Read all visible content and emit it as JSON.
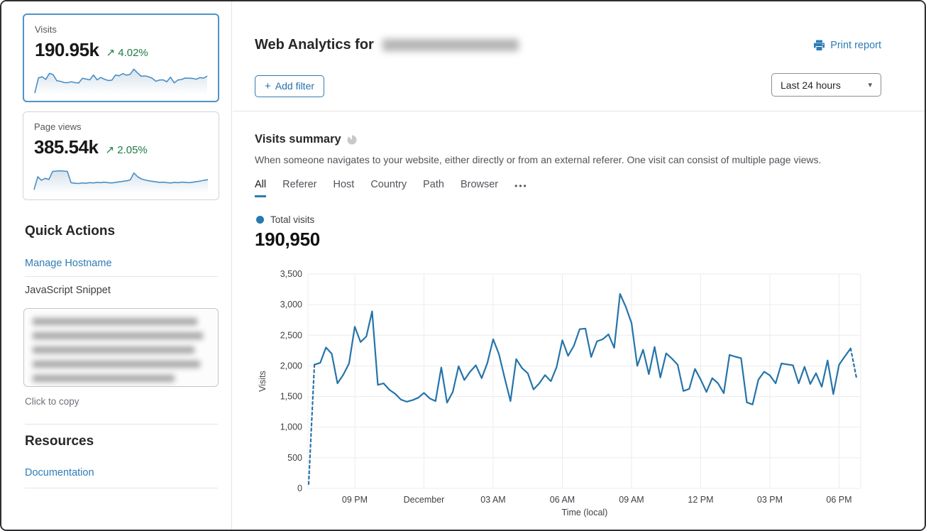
{
  "colors": {
    "accent_blue": "#2e7cb5",
    "chart_line": "#2574a9",
    "positive_green": "#1e7d45",
    "selected_card_border": "#4e93c9",
    "tab_underline": "#2c7cb0"
  },
  "sidebar": {
    "cards": [
      {
        "label": "Visits",
        "value": "190.95k",
        "delta_arrow": "↗",
        "delta": "4.02%",
        "selected": true,
        "spark_max": 3500,
        "spark": [
          70,
          2050,
          2200,
          1855,
          2640,
          2480,
          1690,
          1610,
          1450,
          1440,
          1560,
          1425,
          1400,
          1995,
          1905,
          1800,
          2435,
          1800,
          2110,
          1880,
          1715,
          1750,
          2420,
          2330,
          2610,
          2400,
          2515,
          3175,
          2700,
          2265,
          2310,
          2205,
          2020,
          1625,
          1775,
          1800,
          1555,
          2150,
          1405,
          1775,
          1845,
          2040,
          2010,
          1985,
          1880,
          2090,
          2020,
          2285
        ]
      },
      {
        "label": "Page views",
        "value": "385.54k",
        "delta_arrow": "↗",
        "delta": "2.05%",
        "selected": false,
        "spark_max": 100,
        "spark": [
          10,
          58,
          45,
          52,
          48,
          78,
          79,
          80,
          79,
          78,
          36,
          34,
          33,
          35,
          34,
          36,
          35,
          37,
          36,
          38,
          36,
          35,
          37,
          39,
          41,
          43,
          46,
          72,
          58,
          50,
          46,
          43,
          41,
          39,
          37,
          38,
          36,
          35,
          37,
          36,
          38,
          37,
          36,
          38,
          40,
          42,
          45,
          47
        ]
      }
    ],
    "quick_actions_title": "Quick Actions",
    "manage_hostname_link": "Manage Hostname",
    "js_snippet_label": "JavaScript Snippet",
    "click_to_copy": "Click to copy",
    "resources_title": "Resources",
    "documentation_link": "Documentation"
  },
  "header": {
    "title_prefix": "Web Analytics for",
    "print_report_label": "Print report"
  },
  "toolbar": {
    "add_filter_plus": "+",
    "add_filter_label": "Add filter",
    "time_range_value": "Last 24 hours",
    "caret_glyph": "▾"
  },
  "summary": {
    "title": "Visits summary",
    "description": "When someone navigates to your website, either directly or from an external referer. One visit can consist of multiple page views.",
    "tabs": [
      "All",
      "Referer",
      "Host",
      "Country",
      "Path",
      "Browser"
    ],
    "active_tab": "All",
    "overflow_tab": "•••"
  },
  "chart_data": {
    "type": "line",
    "legend_label": "Total visits",
    "total_visits_label": "190,950",
    "xlabel": "Time (local)",
    "ylabel": "Visits",
    "ylim": [
      0,
      3500
    ],
    "y_tick_step": 500,
    "y_tick_labels": [
      "0",
      "500",
      "1,000",
      "1,500",
      "2,000",
      "2,500",
      "3,000",
      "3,500"
    ],
    "x_tick_labels": [
      "09 PM",
      "December",
      "03 AM",
      "06 AM",
      "09 AM",
      "12 PM",
      "03 PM",
      "06 PM"
    ],
    "x_tick_indices": [
      8,
      20,
      32,
      44,
      56,
      68,
      80,
      92
    ],
    "grid": true,
    "legend_position": "top-left",
    "line_color": "#2574a9",
    "dashed_head_segments": 1,
    "dashed_tail_segments": 1,
    "values": [
      70,
      2020,
      2050,
      2300,
      2200,
      1715,
      1855,
      2040,
      2640,
      2390,
      2480,
      2890,
      1690,
      1715,
      1610,
      1545,
      1450,
      1415,
      1440,
      1480,
      1560,
      1470,
      1425,
      1975,
      1400,
      1575,
      1995,
      1770,
      1905,
      2010,
      1800,
      2050,
      2435,
      2195,
      1800,
      1425,
      2110,
      1965,
      1880,
      1615,
      1715,
      1850,
      1750,
      1980,
      2420,
      2165,
      2330,
      2600,
      2610,
      2145,
      2400,
      2435,
      2515,
      2295,
      3175,
      2965,
      2700,
      2000,
      2265,
      1865,
      2310,
      1810,
      2205,
      2120,
      2020,
      1590,
      1625,
      1950,
      1775,
      1575,
      1800,
      1715,
      1555,
      2180,
      2150,
      2125,
      1405,
      1370,
      1775,
      1905,
      1845,
      1715,
      2040,
      2025,
      2010,
      1715,
      1985,
      1705,
      1880,
      1660,
      2090,
      1540,
      2020,
      2155,
      2285,
      1810
    ]
  }
}
